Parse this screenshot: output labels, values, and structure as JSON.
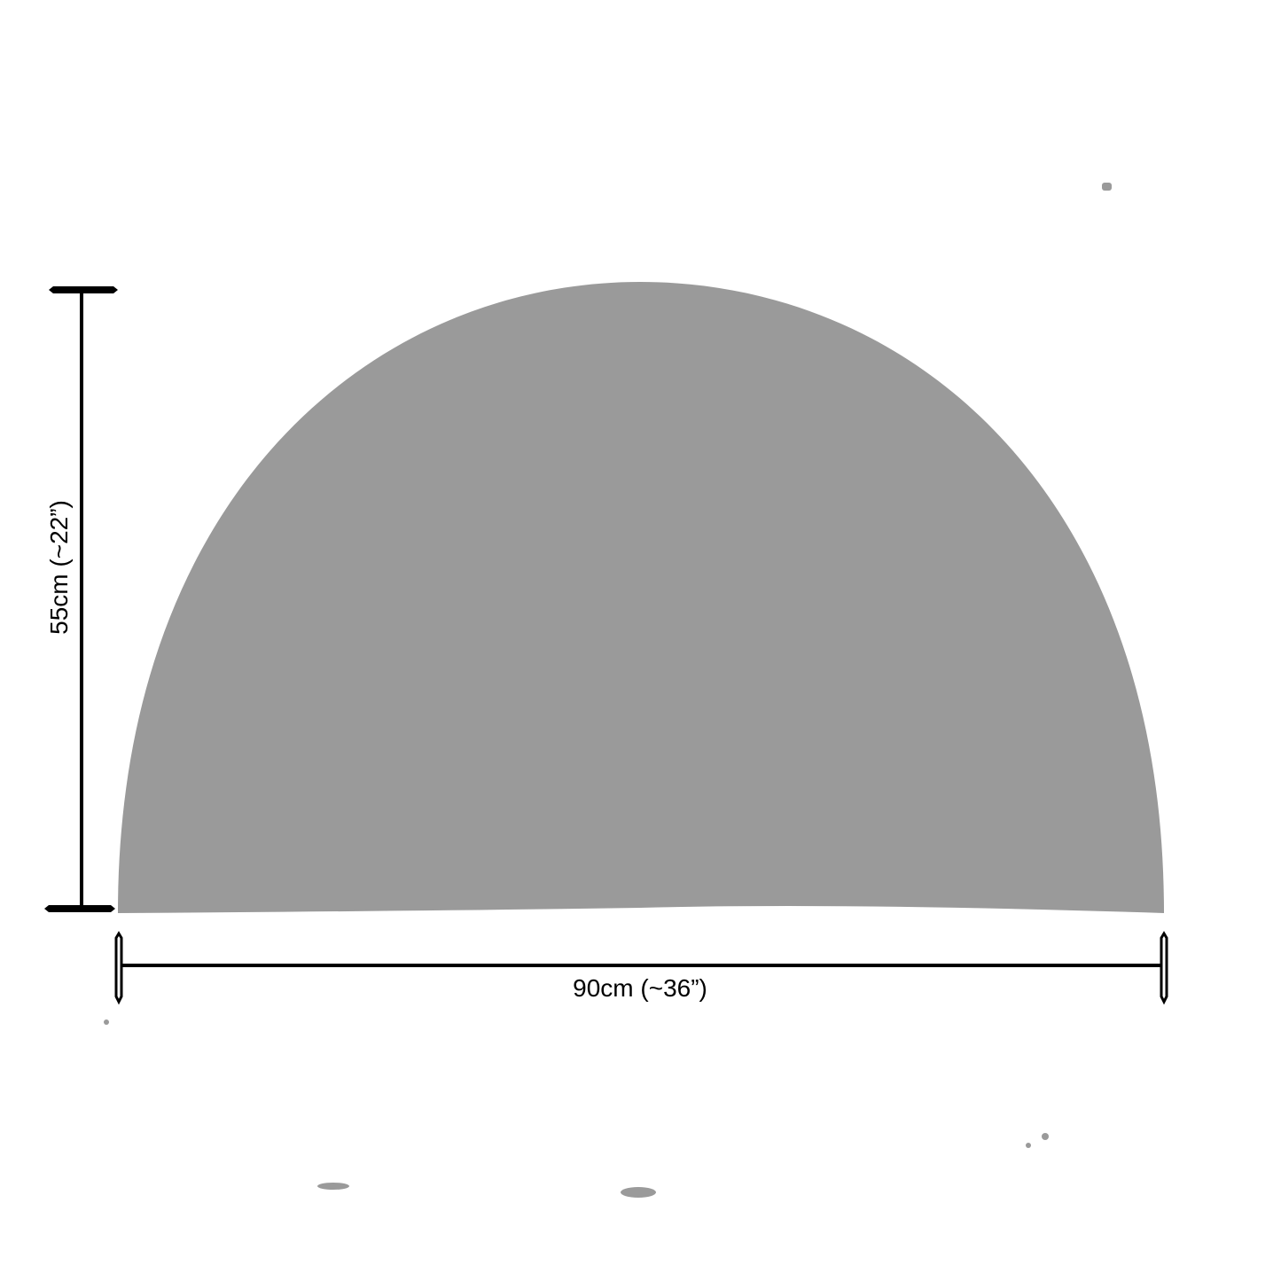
{
  "diagram": {
    "shape": "half-circle",
    "shape_color": "#9a9a9a",
    "line_color": "#000000",
    "height_label": "55cm (~22”)",
    "width_label": "90cm (~36”)"
  }
}
